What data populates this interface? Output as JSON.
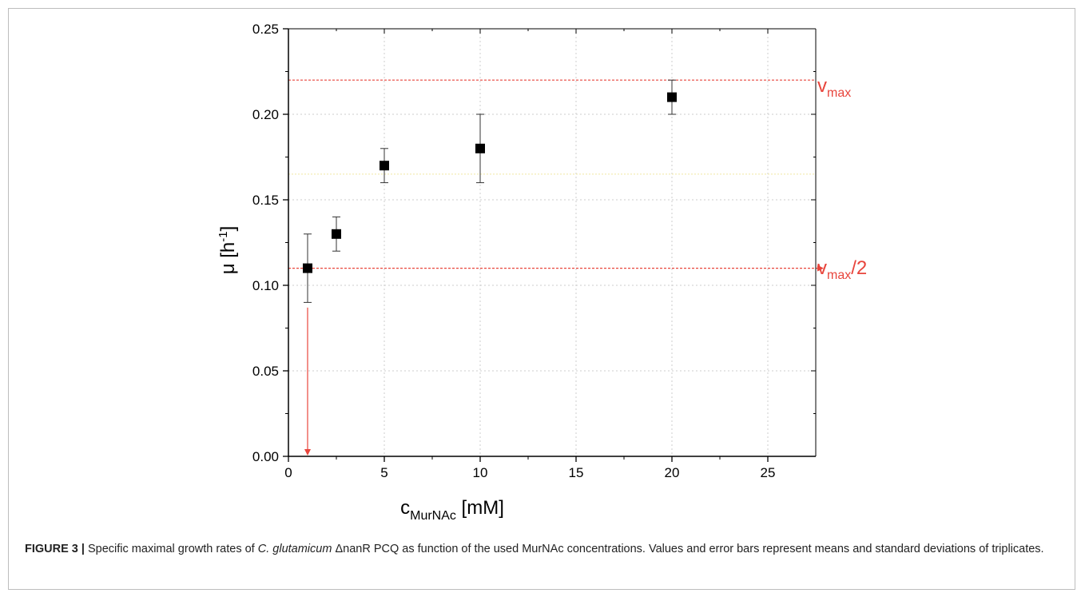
{
  "chart_data": {
    "type": "scatter",
    "xlabel_main": "c",
    "xlabel_sub": "MurNAc",
    "xlabel_unit": " [mM]",
    "ylabel_main": "μ [h",
    "ylabel_sup": "-1",
    "ylabel_end": "]",
    "xlim": [
      0,
      27.5
    ],
    "ylim": [
      0,
      0.25
    ],
    "x_ticks": [
      0,
      5,
      10,
      15,
      20,
      25
    ],
    "x_tick_labels": [
      "0",
      "5",
      "10",
      "15",
      "20",
      "25"
    ],
    "y_ticks": [
      0.0,
      0.05,
      0.1,
      0.15,
      0.2,
      0.25
    ],
    "y_tick_labels": [
      "0.00",
      "0.05",
      "0.10",
      "0.15",
      "0.20",
      "0.25"
    ],
    "grid": true,
    "series": [
      {
        "x": [
          1,
          2.5,
          5,
          10,
          20
        ],
        "y": [
          0.11,
          0.13,
          0.17,
          0.18,
          0.21
        ],
        "err_low": [
          0.09,
          0.12,
          0.16,
          0.16,
          0.2
        ],
        "err_high": [
          0.13,
          0.14,
          0.18,
          0.2,
          0.22
        ]
      }
    ],
    "reference_lines": {
      "vmax_value": 0.22,
      "vmax_main": "v",
      "vmax_sub": "max",
      "half_value": 0.11,
      "half_main": "v",
      "half_sub": "max",
      "half_suffix": "/2",
      "km_x": 1,
      "faint_line_value": 0.165
    },
    "colors": {
      "marker": "#000000",
      "reference": "#e8453c",
      "grid": "#cccccc",
      "faint_line": "#f0e8a0"
    }
  },
  "caption": {
    "label": "FIGURE 3 |",
    "text_1": " Specific maximal growth rates of ",
    "species": "C. glutamicum",
    "text_2": " ΔnanR PCQ as function of the used MurNAc concentrations. Values and error bars represent means and standard deviations of triplicates."
  }
}
